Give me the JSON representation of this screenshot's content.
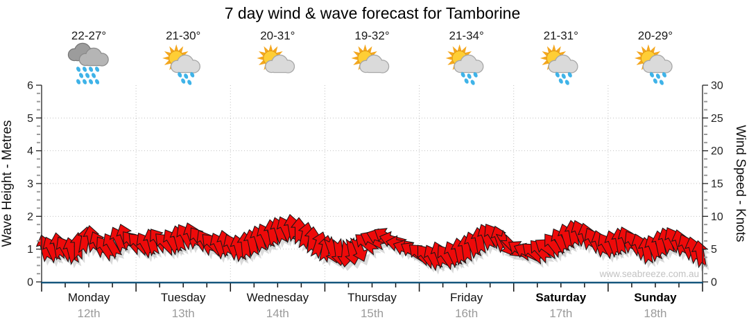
{
  "title": "7 day wind & wave forecast for Tamborine",
  "watermark": "www.seabreeze.com.au",
  "colors": {
    "arrow": "#ee0a0a",
    "arrow_outline": "#151515",
    "arrow_shadow": "#cbcbcb",
    "axis": "#222222",
    "bottom_axis": "#15567d",
    "grid": "#c0c0c0",
    "minor_tick": "#999999",
    "date_text": "#9a9a9a",
    "watermark_text": "#c2c2c2",
    "rain_drop": "#3fb3e8",
    "sun": "#ffce35",
    "sun_rays": "#f4a71f",
    "cloud_light": "#dadada",
    "cloud_dark": "#9c9c9c"
  },
  "days": [
    {
      "name": "Monday",
      "date": "12th",
      "temp_range": "22-27°",
      "icon": "rain-icon",
      "bold": false
    },
    {
      "name": "Tuesday",
      "date": "13th",
      "temp_range": "21-30°",
      "icon": "sun-cloud-rain-icon",
      "bold": false
    },
    {
      "name": "Wednesday",
      "date": "14th",
      "temp_range": "20-31°",
      "icon": "sun-cloud-icon",
      "bold": false
    },
    {
      "name": "Thursday",
      "date": "15th",
      "temp_range": "19-32°",
      "icon": "sun-cloud-icon",
      "bold": false
    },
    {
      "name": "Friday",
      "date": "16th",
      "temp_range": "21-34°",
      "icon": "sun-cloud-rain-icon",
      "bold": false
    },
    {
      "name": "Saturday",
      "date": "17th",
      "temp_range": "21-31°",
      "icon": "sun-cloud-rain-icon",
      "bold": true
    },
    {
      "name": "Sunday",
      "date": "18th",
      "temp_range": "20-29°",
      "icon": "sun-cloud-rain-icon",
      "bold": true
    }
  ],
  "left_axis": {
    "label": "Wave Height - Metres",
    "min": 0,
    "max": 6,
    "ticks": [
      0,
      1,
      2,
      3,
      4,
      5,
      6
    ]
  },
  "right_axis": {
    "label": "Wind Speed - Knots",
    "min": 0,
    "max": 30,
    "ticks": [
      0,
      5,
      10,
      15,
      20,
      25,
      30
    ]
  },
  "chart_data": {
    "type": "wind-arrow-series",
    "title": "7 day wind & wave forecast for Tamborine",
    "categories": [
      "Monday",
      "Tuesday",
      "Wednesday",
      "Thursday",
      "Friday",
      "Saturday",
      "Sunday"
    ],
    "x_axis": {
      "unit": "hour_of_week",
      "range": [
        0,
        168
      ]
    },
    "wave_height_m_constant": 0,
    "wind": {
      "point_format": [
        "hour_of_week",
        "speed_knots",
        "arrow_direction_deg_clockwise_from_up"
      ],
      "points": [
        [
          0.8,
          5.2,
          -15
        ],
        [
          2.5,
          5.0,
          -25
        ],
        [
          4.2,
          5.5,
          -10
        ],
        [
          5.9,
          5.1,
          -30
        ],
        [
          7.6,
          4.8,
          -15
        ],
        [
          9.3,
          5.5,
          0
        ],
        [
          11.0,
          6.4,
          10
        ],
        [
          12.7,
          6.6,
          -10
        ],
        [
          14.4,
          5.8,
          -25
        ],
        [
          16.1,
          5.2,
          -35
        ],
        [
          17.8,
          5.6,
          -30
        ],
        [
          19.5,
          6.5,
          -25
        ],
        [
          21.2,
          6.9,
          -20
        ],
        [
          22.9,
          6.1,
          -40
        ],
        [
          24.6,
          5.9,
          -45
        ],
        [
          26.3,
          5.7,
          -30
        ],
        [
          28.0,
          6.1,
          -15
        ],
        [
          29.7,
          6.4,
          -35
        ],
        [
          31.4,
          5.9,
          -45
        ],
        [
          33.1,
          6.2,
          -30
        ],
        [
          34.8,
          6.6,
          -15
        ],
        [
          36.5,
          7.0,
          -30
        ],
        [
          38.2,
          7.1,
          -20
        ],
        [
          39.9,
          6.6,
          -35
        ],
        [
          41.6,
          6.1,
          -30
        ],
        [
          43.3,
          5.8,
          -45
        ],
        [
          45.0,
          5.6,
          -25
        ],
        [
          46.7,
          5.9,
          -15
        ],
        [
          48.4,
          5.4,
          -25
        ],
        [
          50.1,
          5.2,
          -15
        ],
        [
          51.8,
          5.6,
          -5
        ],
        [
          53.5,
          6.0,
          -12
        ],
        [
          55.2,
          6.6,
          -18
        ],
        [
          56.9,
          7.0,
          -25
        ],
        [
          58.6,
          7.5,
          -10
        ],
        [
          60.3,
          7.9,
          -18
        ],
        [
          62.0,
          8.1,
          -25
        ],
        [
          63.7,
          8.3,
          -10
        ],
        [
          65.4,
          7.8,
          0
        ],
        [
          67.1,
          7.1,
          12
        ],
        [
          68.8,
          6.4,
          5
        ],
        [
          70.5,
          5.7,
          18
        ],
        [
          72.2,
          5.1,
          10
        ],
        [
          73.9,
          4.8,
          160
        ],
        [
          75.6,
          4.5,
          172
        ],
        [
          77.3,
          4.3,
          185
        ],
        [
          79.0,
          4.6,
          170
        ],
        [
          80.7,
          5.0,
          158
        ],
        [
          82.4,
          5.9,
          -50
        ],
        [
          84.1,
          6.4,
          -62
        ],
        [
          85.8,
          6.8,
          -70
        ],
        [
          87.5,
          6.9,
          -58
        ],
        [
          89.2,
          6.4,
          -75
        ],
        [
          90.9,
          5.8,
          -80
        ],
        [
          92.6,
          5.1,
          -70
        ],
        [
          94.3,
          4.7,
          -58
        ],
        [
          96.0,
          4.3,
          -48
        ],
        [
          97.7,
          4.0,
          -38
        ],
        [
          99.4,
          3.8,
          -28
        ],
        [
          101.1,
          4.2,
          -20
        ],
        [
          102.8,
          3.9,
          -35
        ],
        [
          104.5,
          4.3,
          -25
        ],
        [
          106.2,
          4.7,
          -12
        ],
        [
          107.9,
          5.1,
          -8
        ],
        [
          109.6,
          5.7,
          -20
        ],
        [
          111.3,
          6.3,
          -10
        ],
        [
          113.0,
          6.9,
          -22
        ],
        [
          114.7,
          7.1,
          -32
        ],
        [
          116.4,
          6.6,
          -20
        ],
        [
          118.1,
          5.8,
          150
        ],
        [
          119.8,
          5.3,
          135
        ],
        [
          121.5,
          4.9,
          -55
        ],
        [
          123.2,
          4.6,
          -65
        ],
        [
          124.9,
          4.5,
          -50
        ],
        [
          126.6,
          4.8,
          -42
        ],
        [
          128.3,
          5.2,
          -55
        ],
        [
          130.0,
          5.7,
          -38
        ],
        [
          131.7,
          6.3,
          -28
        ],
        [
          133.4,
          6.9,
          -18
        ],
        [
          135.1,
          7.4,
          -10
        ],
        [
          136.8,
          7.5,
          -22
        ],
        [
          138.5,
          7.0,
          -15
        ],
        [
          140.2,
          6.4,
          -28
        ],
        [
          141.9,
          5.9,
          -18
        ],
        [
          143.6,
          5.6,
          -30
        ],
        [
          145.3,
          5.9,
          -20
        ],
        [
          147.0,
          6.2,
          -10
        ],
        [
          148.7,
          6.5,
          -22
        ],
        [
          150.4,
          6.0,
          -32
        ],
        [
          152.1,
          5.4,
          -20
        ],
        [
          153.8,
          4.8,
          -10
        ],
        [
          155.5,
          5.2,
          -22
        ],
        [
          157.2,
          5.8,
          -12
        ],
        [
          158.9,
          6.3,
          -18
        ],
        [
          160.6,
          6.5,
          -28
        ],
        [
          162.3,
          6.0,
          -15
        ],
        [
          164.0,
          5.4,
          -25
        ],
        [
          165.7,
          4.9,
          -15
        ],
        [
          167.4,
          4.3,
          -10
        ]
      ]
    }
  }
}
